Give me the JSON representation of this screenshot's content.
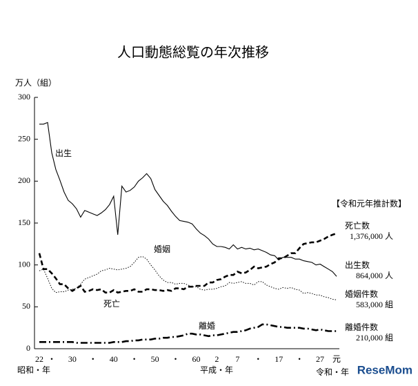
{
  "chart_data": {
    "type": "line",
    "title": "人口動態総覧の年次推移",
    "y_label": "万人（組）",
    "era_labels": [
      "昭和・年",
      "平成・年",
      "令和・年"
    ],
    "categories": [
      "22",
      null,
      null,
      "・",
      null,
      null,
      null,
      null,
      "30",
      null,
      null,
      null,
      null,
      "・",
      null,
      null,
      null,
      null,
      "40",
      null,
      null,
      null,
      null,
      "・",
      null,
      null,
      null,
      null,
      "50",
      null,
      null,
      null,
      null,
      "・",
      null,
      null,
      null,
      null,
      "60",
      null,
      null,
      null,
      null,
      "2",
      null,
      null,
      null,
      null,
      "7",
      null,
      null,
      null,
      null,
      "・",
      null,
      null,
      null,
      null,
      "17",
      null,
      null,
      null,
      null,
      "・",
      null,
      null,
      null,
      null,
      "27",
      null,
      null,
      null,
      "元"
    ],
    "ylim": [
      0,
      300
    ],
    "yticks": [
      0,
      50,
      100,
      150,
      200,
      250,
      300
    ],
    "series": [
      {
        "name": "出生",
        "color": "#000000",
        "style": "solid",
        "values": [
          268,
          268,
          270,
          234,
          214,
          201,
          187,
          177,
          173,
          167,
          157,
          165,
          163,
          161,
          159,
          162,
          166,
          172,
          182,
          136,
          194,
          187,
          189,
          193,
          200,
          204,
          209,
          203,
          190,
          183,
          176,
          171,
          164,
          158,
          153,
          152,
          151,
          149,
          143,
          138,
          135,
          131,
          125,
          122,
          122,
          121,
          119,
          124,
          119,
          121,
          119,
          120,
          118,
          119,
          117,
          115,
          112,
          111,
          106,
          109,
          109,
          109,
          107,
          107,
          105,
          104,
          103,
          100,
          101,
          98,
          95,
          92,
          86.4
        ]
      },
      {
        "name": "死亡",
        "color": "#000000",
        "style": "dashed",
        "values": [
          114,
          95,
          95,
          90,
          84,
          77,
          77,
          72,
          69,
          72,
          75,
          68,
          69,
          71,
          70,
          71,
          67,
          67,
          70,
          67,
          68,
          69,
          69,
          71,
          68,
          68,
          71,
          71,
          70,
          70,
          69,
          70,
          69,
          72,
          72,
          71,
          74,
          74,
          75,
          75,
          75,
          79,
          79,
          82,
          83,
          86,
          88,
          88,
          92,
          90,
          91,
          94,
          98,
          96,
          97,
          98,
          101,
          103,
          108,
          108,
          111,
          114,
          114,
          120,
          125,
          126,
          127,
          127,
          129,
          131,
          134,
          136,
          137.6
        ]
      },
      {
        "name": "婚姻",
        "color": "#000000",
        "style": "dotted",
        "values": [
          93,
          95,
          84,
          72,
          67,
          68,
          68,
          70,
          71,
          72,
          77,
          83,
          85,
          87,
          89,
          93,
          94,
          96,
          95,
          94,
          95,
          96,
          98,
          103,
          109,
          110,
          107,
          100,
          94,
          87,
          82,
          79,
          79,
          77,
          78,
          78,
          76,
          74,
          74,
          71,
          70,
          71,
          71,
          72,
          74,
          75,
          79,
          78,
          79,
          80,
          78,
          78,
          76,
          80,
          80,
          76,
          74,
          72,
          71,
          73,
          72,
          73,
          71,
          70,
          66,
          67,
          66,
          64,
          64,
          62,
          61,
          59,
          58.3
        ]
      },
      {
        "name": "離婚",
        "color": "#000000",
        "style": "dashdot",
        "values": [
          8,
          8,
          8,
          8,
          8,
          8,
          8,
          8,
          8,
          7,
          7,
          7,
          7,
          7,
          7,
          7,
          7,
          7,
          8,
          8,
          8,
          9,
          9,
          10,
          10,
          11,
          11,
          11,
          12,
          12,
          13,
          13,
          14,
          14,
          15,
          16,
          18,
          18,
          17,
          17,
          16,
          15,
          16,
          16,
          17,
          18,
          19,
          20,
          20,
          21,
          22,
          24,
          25,
          26,
          29,
          29,
          28,
          27,
          26,
          26,
          25,
          25,
          25,
          25,
          24,
          24,
          23,
          22,
          23,
          22,
          21,
          21,
          21
        ]
      }
    ],
    "annotations": {
      "heading": "【令和元年推計数】",
      "items": [
        {
          "label": "死亡数",
          "value": "1,376,000 人"
        },
        {
          "label": "出生数",
          "value": "864,000 人"
        },
        {
          "label": "婚姻件数",
          "value": "583,000 組"
        },
        {
          "label": "離婚件数",
          "value": "210,000 組"
        }
      ]
    },
    "watermark": "ReseMom"
  }
}
